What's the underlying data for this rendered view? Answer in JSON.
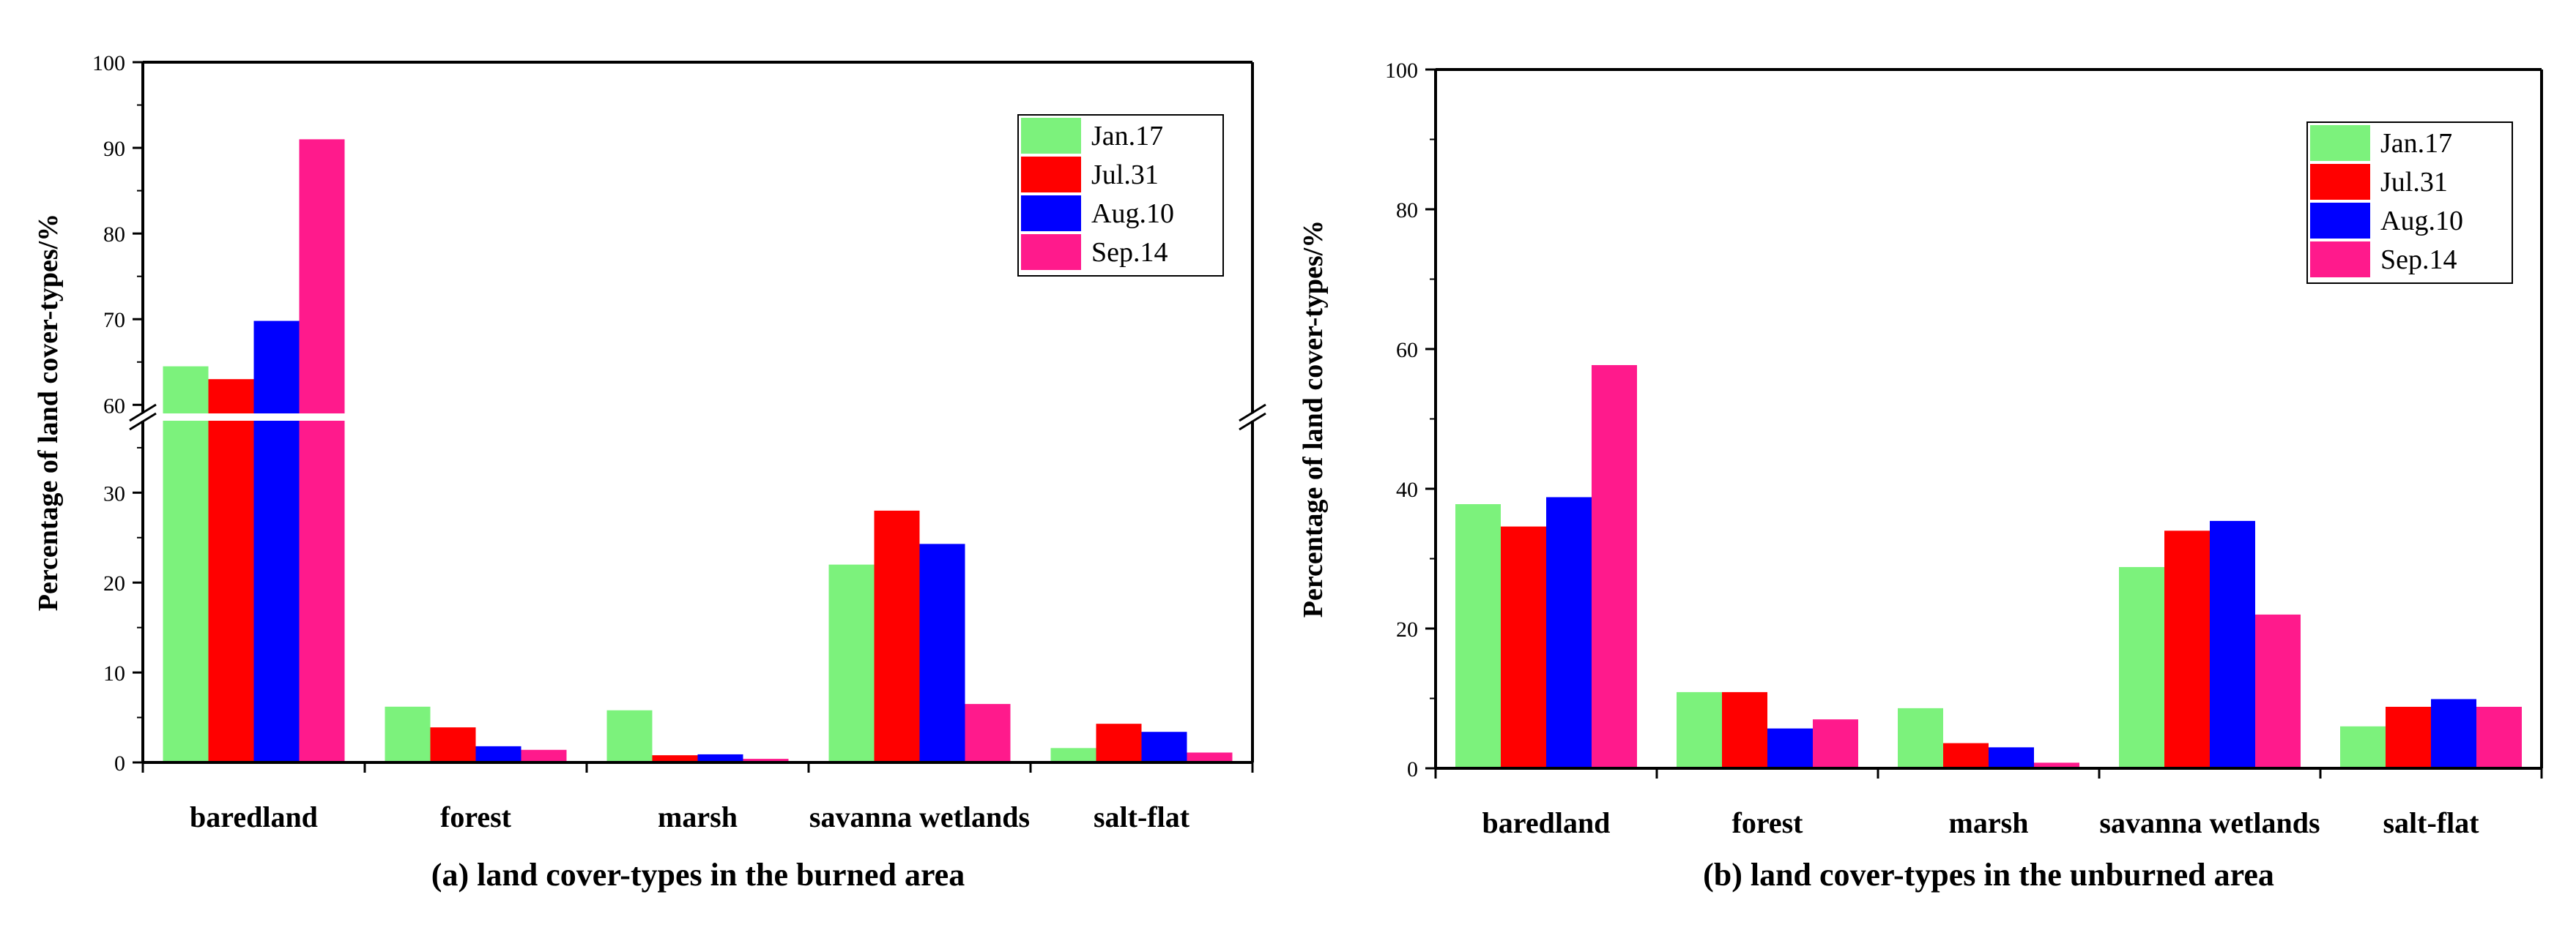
{
  "chart_data": [
    {
      "id": "a",
      "type": "bar",
      "title": "(a) land cover-types in the burned area",
      "xlabel": "",
      "ylabel": "Percentage of land cover-types/%",
      "categories": [
        "baredland",
        "forest",
        "marsh",
        "savanna wetlands",
        "salt-flat"
      ],
      "series": [
        {
          "name": "Jan.17",
          "color": "#7cf27c",
          "values": [
            64.5,
            6.2,
            5.8,
            22.0,
            1.6
          ]
        },
        {
          "name": "Jul.31",
          "color": "#ff0000",
          "values": [
            63.0,
            3.9,
            0.8,
            28.0,
            4.3
          ]
        },
        {
          "name": "Aug.10",
          "color": "#0000ff",
          "values": [
            69.8,
            1.8,
            0.9,
            24.3,
            3.4
          ]
        },
        {
          "name": "Sep.14",
          "color": "#ff1a8c",
          "values": [
            91.0,
            1.4,
            0.4,
            6.5,
            1.1
          ]
        }
      ],
      "axis_break": {
        "lower": [
          0,
          38
        ],
        "upper": [
          59,
          100
        ]
      },
      "yticks_lower": [
        "0",
        "10",
        "20",
        "30"
      ],
      "yticks_upper": [
        "60",
        "70",
        "80",
        "90",
        "100"
      ],
      "legend": "top-right"
    },
    {
      "id": "b",
      "type": "bar",
      "title": "(b) land cover-types in the unburned area",
      "xlabel": "",
      "ylabel": "Percentage of land cover-types/%",
      "categories": [
        "baredland",
        "forest",
        "marsh",
        "savanna wetlands",
        "salt-flat"
      ],
      "series": [
        {
          "name": "Jan.17",
          "color": "#7cf27c",
          "values": [
            37.8,
            10.9,
            8.6,
            28.8,
            6.0
          ]
        },
        {
          "name": "Jul.31",
          "color": "#ff0000",
          "values": [
            34.6,
            10.9,
            3.6,
            34.0,
            8.8
          ]
        },
        {
          "name": "Aug.10",
          "color": "#0000ff",
          "values": [
            38.8,
            5.7,
            3.0,
            35.4,
            9.9
          ]
        },
        {
          "name": "Sep.14",
          "color": "#ff1a8c",
          "values": [
            57.7,
            7.0,
            0.8,
            22.0,
            8.8
          ]
        }
      ],
      "ylim": [
        0,
        100
      ],
      "yticks": [
        "0",
        "20",
        "40",
        "60",
        "80",
        "100"
      ],
      "legend": "top-right"
    }
  ]
}
